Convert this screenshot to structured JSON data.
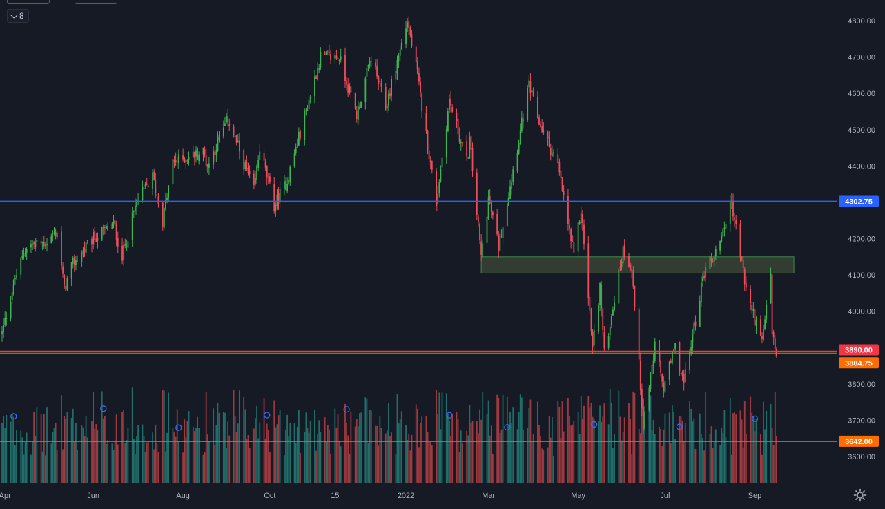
{
  "toolbar": {
    "interval_label": "8"
  },
  "colors": {
    "background": "#161a25",
    "up": "#3fb352",
    "down": "#ef4d5b",
    "volume_up": "#1f6e6a",
    "volume_down": "#9e3a3f",
    "support_line": "#2962ff",
    "resistance_line_red": "#f23645",
    "hline_orange": "#ff6d00",
    "zone_fill": "#4c5a3c",
    "axis_text": "#b2b5be"
  },
  "chart_data": {
    "type": "candlestick",
    "title": "",
    "xlabel": "",
    "ylabel": "",
    "ylim": [
      3520,
      4830
    ],
    "y_ticks": [
      3600,
      3700,
      3800,
      3900,
      4000,
      4100,
      4200,
      4300,
      4400,
      4500,
      4600,
      4700,
      4800
    ],
    "x_ticks": [
      {
        "label": "Apr",
        "date": "2021-04-01"
      },
      {
        "label": "Jun",
        "date": "2021-06-01"
      },
      {
        "label": "Aug",
        "date": "2021-08-02"
      },
      {
        "label": "Oct",
        "date": "2021-10-01"
      },
      {
        "label": "15",
        "date": "2021-11-15"
      },
      {
        "label": "2022",
        "date": "2022-01-03"
      },
      {
        "label": "Mar",
        "date": "2022-03-01"
      },
      {
        "label": "May",
        "date": "2022-05-02"
      },
      {
        "label": "Jul",
        "date": "2022-07-01"
      },
      {
        "label": "Sep",
        "date": "2022-09-01"
      }
    ],
    "price_path": [
      [
        "2021-03-30",
        3940
      ],
      [
        "2021-04-08",
        4090
      ],
      [
        "2021-04-16",
        4180
      ],
      [
        "2021-04-30",
        4190
      ],
      [
        "2021-05-07",
        4220
      ],
      [
        "2021-05-12",
        4060
      ],
      [
        "2021-05-18",
        4130
      ],
      [
        "2021-06-01",
        4200
      ],
      [
        "2021-06-15",
        4240
      ],
      [
        "2021-06-21",
        4150
      ],
      [
        "2021-07-01",
        4300
      ],
      [
        "2021-07-12",
        4370
      ],
      [
        "2021-07-19",
        4250
      ],
      [
        "2021-07-26",
        4410
      ],
      [
        "2021-08-16",
        4440
      ],
      [
        "2021-08-19",
        4400
      ],
      [
        "2021-09-02",
        4530
      ],
      [
        "2021-09-20",
        4330
      ],
      [
        "2021-09-24",
        4450
      ],
      [
        "2021-10-04",
        4290
      ],
      [
        "2021-10-13",
        4360
      ],
      [
        "2021-11-05",
        4700
      ],
      [
        "2021-11-18",
        4700
      ],
      [
        "2021-11-30",
        4540
      ],
      [
        "2021-12-10",
        4700
      ],
      [
        "2021-12-20",
        4560
      ],
      [
        "2022-01-04",
        4800
      ],
      [
        "2022-01-10",
        4670
      ],
      [
        "2022-01-24",
        4300
      ],
      [
        "2022-02-02",
        4580
      ],
      [
        "2022-02-14",
        4410
      ],
      [
        "2022-02-16",
        4470
      ],
      [
        "2022-02-24",
        4150
      ],
      [
        "2022-03-01",
        4310
      ],
      [
        "2022-03-08",
        4180
      ],
      [
        "2022-03-29",
        4620
      ],
      [
        "2022-04-05",
        4520
      ],
      [
        "2022-04-18",
        4400
      ],
      [
        "2022-04-29",
        4150
      ],
      [
        "2022-05-04",
        4280
      ],
      [
        "2022-05-12",
        3900
      ],
      [
        "2022-05-17",
        4070
      ],
      [
        "2022-05-20",
        3880
      ],
      [
        "2022-06-02",
        4170
      ],
      [
        "2022-06-08",
        4120
      ],
      [
        "2022-06-16",
        3690
      ],
      [
        "2022-06-24",
        3900
      ],
      [
        "2022-06-30",
        3790
      ],
      [
        "2022-07-08",
        3900
      ],
      [
        "2022-07-14",
        3800
      ],
      [
        "2022-07-29",
        4130
      ],
      [
        "2022-08-04",
        4150
      ],
      [
        "2022-08-16",
        4300
      ],
      [
        "2022-08-26",
        4060
      ],
      [
        "2022-09-06",
        3910
      ],
      [
        "2022-09-12",
        4110
      ],
      [
        "2022-09-13",
        3940
      ],
      [
        "2022-09-16",
        3870
      ]
    ],
    "horizontal_lines": [
      {
        "value": 4302.75,
        "label": "4302.75",
        "color": "#2962ff"
      },
      {
        "value": 3890.0,
        "label": "3890.00",
        "color": "#f23645"
      },
      {
        "value": 3884.75,
        "label": "3884.75",
        "color": "#ff6d00"
      },
      {
        "value": 3642.0,
        "label": "3642.00",
        "color": "#ff6d00"
      }
    ],
    "zones": [
      {
        "from_date": "2022-02-24",
        "to_date": "2022-09-28",
        "low": 4105,
        "high": 4150
      }
    ],
    "volume_markers": [
      "2021-04-07",
      "2021-06-08",
      "2021-07-30",
      "2021-09-29",
      "2021-11-23",
      "2022-02-02",
      "2022-03-14",
      "2022-05-13",
      "2022-07-11",
      "2022-09-01"
    ],
    "grid": false,
    "legend": "none"
  }
}
